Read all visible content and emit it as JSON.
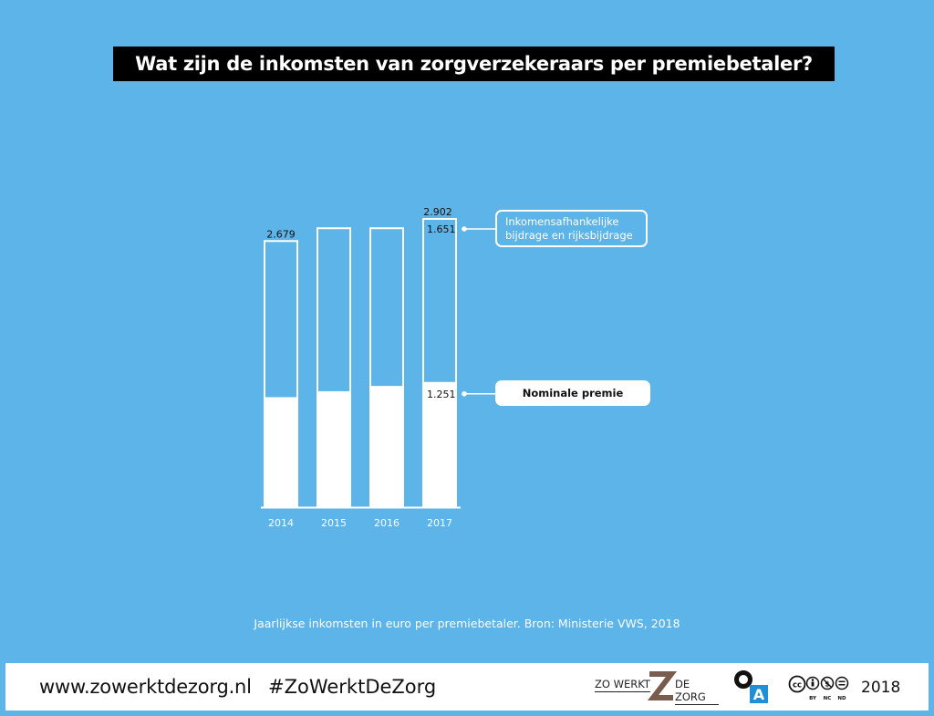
{
  "header": {
    "title": "Wat zijn de inkomsten van zorgverzekeraars per premiebetaler?"
  },
  "chart_data": {
    "type": "bar",
    "stacked": true,
    "categories": [
      "2014",
      "2015",
      "2016",
      "2017"
    ],
    "totals": [
      2679,
      2808,
      2808,
      2902
    ],
    "series": [
      {
        "name": "Nominale premie",
        "values": [
          1098,
          1158,
          1211,
          1251
        ],
        "color": "#ffffff"
      },
      {
        "name": "Inkomensafhankelijke bijdrage en rijksbijdrage",
        "values": [
          1581,
          1650,
          1597,
          1651
        ],
        "color": "#5cb4e8"
      }
    ],
    "labels": {
      "total_2014": "2.679",
      "total_2017": "2.902",
      "income_2017": "1.651",
      "premium_2017": "1.251"
    },
    "ylim": [
      0,
      2902
    ],
    "grid": false
  },
  "callouts": {
    "income_line1": "Inkomensafhankelijke",
    "income_line2": "bijdrage en rijksbijdrage",
    "premium": "Nominale premie"
  },
  "source": "Jaarlijkse inkomsten in euro per premiebetaler. Bron: Ministerie VWS, 2018",
  "footer": {
    "site": "www.zowerktdezorg.nl",
    "hashtag": "#ZoWerktDeZorg",
    "logo_left": "ZO WERKT",
    "logo_right": "DE ZORG",
    "oa_letter": "A",
    "cc_by": "BY",
    "cc_nc": "NC",
    "cc_nd": "ND",
    "year": "2018"
  },
  "colors": {
    "background": "#5cb4e8",
    "bar_bottom": "#ffffff",
    "title_bg": "#000000"
  }
}
